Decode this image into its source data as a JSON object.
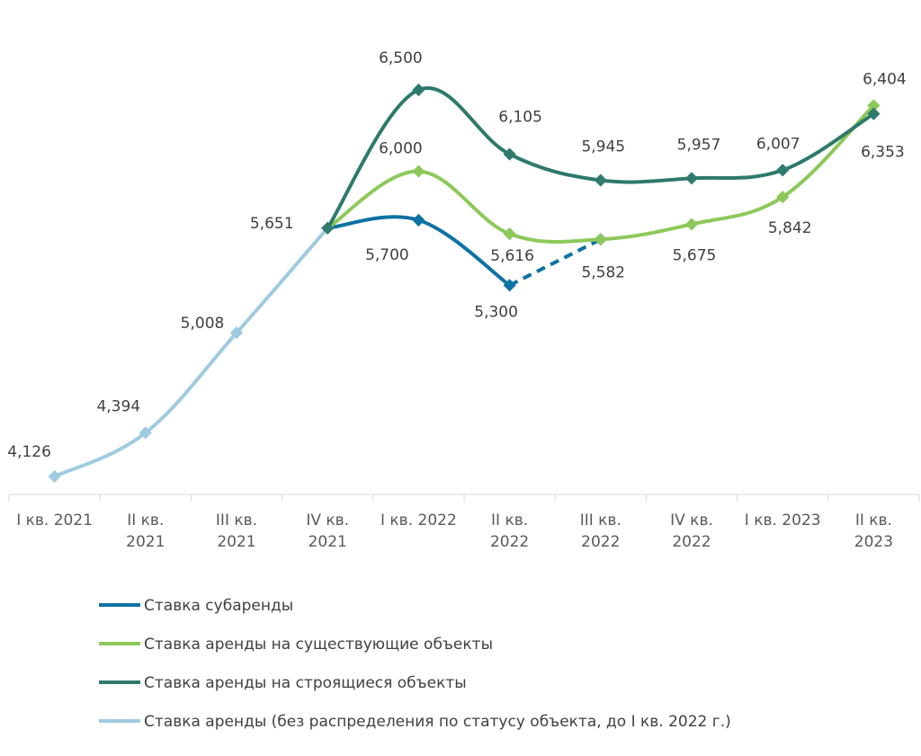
{
  "chart_data": {
    "type": "line",
    "categories": [
      "I кв. 2021",
      "II кв. 2021",
      "III кв. 2021",
      "IV кв. 2021",
      "I кв. 2022",
      "II кв. 2022",
      "III кв. 2022",
      "IV кв. 2022",
      "I кв. 2023",
      "II кв. 2023"
    ],
    "category_lines": [
      [
        "I кв. 2021"
      ],
      [
        "II кв.",
        "2021"
      ],
      [
        "III кв.",
        "2021"
      ],
      [
        "IV кв.",
        "2021"
      ],
      [
        "I кв. 2022"
      ],
      [
        "II кв.",
        "2022"
      ],
      [
        "III кв.",
        "2022"
      ],
      [
        "IV кв.",
        "2022"
      ],
      [
        "I кв. 2023"
      ],
      [
        "II кв.",
        "2023"
      ]
    ],
    "series": [
      {
        "name": "Ставка субаренды",
        "color": "#0E72A3",
        "values": [
          null,
          null,
          null,
          5651,
          5700,
          5300,
          5582,
          null,
          null,
          null
        ],
        "dashed_from_index": 5,
        "labels": [
          null,
          null,
          null,
          null,
          "5,700",
          "5,300",
          null,
          null,
          null,
          null
        ]
      },
      {
        "name": "Ставка аренды на существующие объекты",
        "color": "#8DC85A",
        "values": [
          null,
          null,
          null,
          5651,
          6000,
          5616,
          5582,
          5675,
          5842,
          6404
        ],
        "labels": [
          null,
          null,
          null,
          null,
          "6,000",
          "5,616",
          "5,582",
          "5,675",
          "5,842",
          "6,404"
        ]
      },
      {
        "name": "Ставка аренды на строящиеся объекты",
        "color": "#2E7A6C",
        "values": [
          null,
          null,
          null,
          5651,
          6500,
          6105,
          5945,
          5957,
          6007,
          6353
        ],
        "labels": [
          null,
          null,
          null,
          null,
          "6,500",
          "6,105",
          "5,945",
          "5,957",
          "6,007",
          "6,353"
        ]
      },
      {
        "name": "Ставка аренды (без распределения по статусу объекта, до I кв. 2022 г.)",
        "color": "#9FCBE0",
        "values": [
          4126,
          4394,
          5008,
          5651,
          null,
          null,
          null,
          null,
          null,
          null
        ],
        "labels": [
          "4,126",
          "4,394",
          "5,008",
          "5,651",
          null,
          null,
          null,
          null,
          null,
          null
        ]
      }
    ],
    "ylim": [
      3900,
      6800
    ],
    "legend_position": "bottom-left",
    "grid": false
  }
}
